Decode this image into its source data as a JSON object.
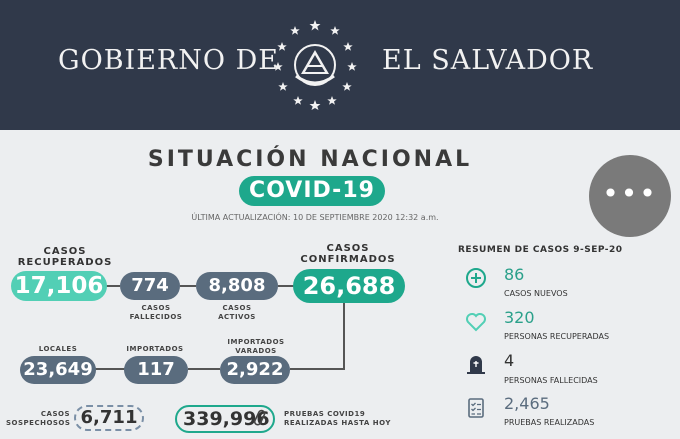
{
  "header": {
    "left_text": "GOBIERNO DE",
    "right_text": "EL SALVADOR",
    "emblem_icon": "coat-of-arms-icon"
  },
  "main": {
    "title": "SITUACIÓN NACIONAL",
    "badge": "COVID-19",
    "updated": "ÚLTIMA ACTUALIZACIÓN: 10 DE SEPTIEMBRE 2020 12:32 a.m.",
    "menu_label": "•••"
  },
  "stats": {
    "recuperados": {
      "label": "CASOS\nRECUPERADOS",
      "value": "17,106"
    },
    "fallecidos": {
      "label": "CASOS\nFALLECIDOS",
      "value": "774"
    },
    "activos": {
      "label": "CASOS\nACTIVOS",
      "value": "8,808"
    },
    "confirmados": {
      "label": "CASOS\nCONFIRMADOS",
      "value": "26,688"
    },
    "locales": {
      "label": "LOCALES",
      "value": "23,649"
    },
    "importados": {
      "label": "IMPORTADOS",
      "value": "117"
    },
    "varados": {
      "label": "IMPORTADOS\nVARADOS",
      "value": "2,922"
    },
    "sospechosos": {
      "label": "CASOS\nSOSPECHOSOS",
      "value": "6,711"
    },
    "pruebas": {
      "label": "PRUEBAS COVID19\nREALIZADAS HASTA HOY",
      "value": "339,996"
    }
  },
  "summary": {
    "title": "RESUMEN DE CASOS 9-SEP-20",
    "items": [
      {
        "icon": "plus-circle-icon",
        "value": "86",
        "label": "CASOS NUEVOS"
      },
      {
        "icon": "heart-icon",
        "value": "320",
        "label": "PERSONAS RECUPERADAS"
      },
      {
        "icon": "tombstone-icon",
        "value": "4",
        "label": "PERSONAS FALLECIDAS"
      },
      {
        "icon": "checklist-icon",
        "value": "2,465",
        "label": "PRUEBAS REALIZADAS"
      }
    ]
  },
  "colors": {
    "header_bg": "#30394a",
    "teal": "#1ea88c",
    "teal_light": "#52cfb5",
    "slate": "#5a6c7e"
  }
}
